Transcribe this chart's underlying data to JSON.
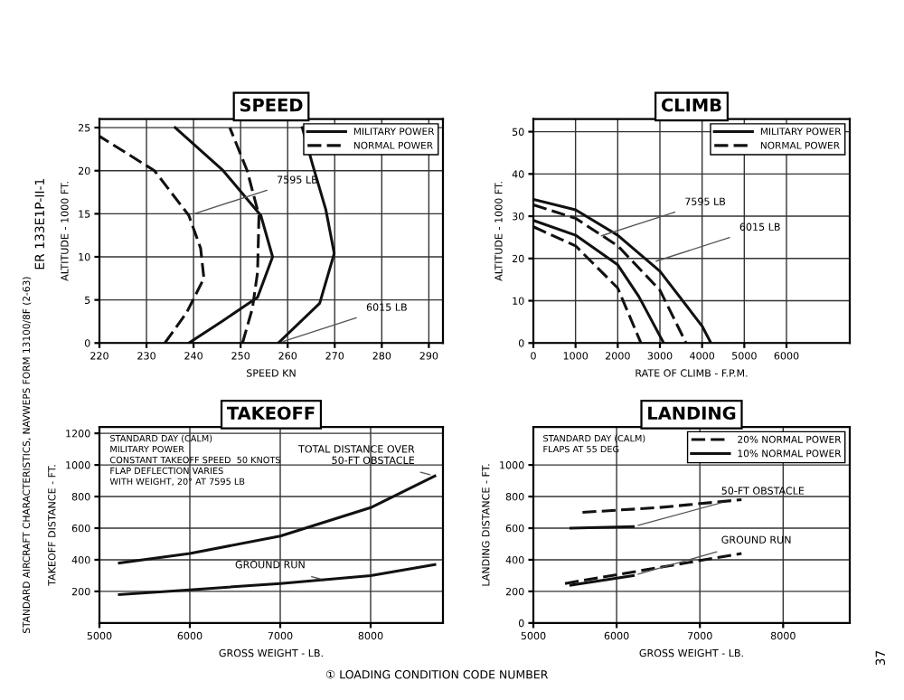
{
  "chart_data": [
    {
      "type": "line",
      "title": "SPEED",
      "xlabel": "SPEED KN",
      "ylabel": "ALTITUDE - 1000 FT.",
      "xlim": [
        220,
        293
      ],
      "xticks": [
        220,
        230,
        240,
        250,
        260,
        270,
        280,
        290
      ],
      "ylim": [
        0,
        26
      ],
      "yticks": [
        0,
        5,
        10,
        15,
        20,
        25
      ],
      "grid": true,
      "legend": "top right",
      "marker": "none",
      "series": [
        {
          "name": "MILITARY POWER",
          "color": "#111111",
          "line_style": "solid",
          "x": [
            239,
            246,
            253.6,
            256.8,
            254.3,
            246.3,
            236.1
          ],
          "values": [
            0,
            2.5,
            5.3,
            10,
            14.8,
            20,
            25
          ]
        },
        {
          "name": "NORMAL POWER",
          "color": "#111111",
          "line_style": "dashed",
          "x": [
            233.9,
            238.5,
            242.2,
            241.5,
            239,
            231.7,
            220
          ],
          "values": [
            0,
            3.5,
            7.5,
            11,
            14.8,
            20,
            24
          ]
        },
        {
          "color": "#111111",
          "line_style": "solid",
          "x": [
            258,
            266.8,
            269.9,
            268.1,
            265.3,
            263.1
          ],
          "values": [
            0,
            4.6,
            10.4,
            15.5,
            20.7,
            25
          ]
        },
        {
          "color": "#111111",
          "line_style": "dashed",
          "x": [
            250.4,
            252.5,
            253.6,
            253.9,
            251.4,
            247.7
          ],
          "values": [
            0,
            4,
            8.2,
            14.8,
            20,
            25
          ]
        }
      ],
      "annotations": [
        {
          "text": "7595 LB",
          "x": 239,
          "y": 14.8
        },
        {
          "text": "6015 LB",
          "x": 258,
          "y": 0
        }
      ]
    },
    {
      "type": "line",
      "title": "CLIMB",
      "xlabel": "RATE OF CLIMB - F.P.M.",
      "ylabel": "ALTITUDE - 1000 FT.",
      "xlim": [
        0,
        7500
      ],
      "xticks": [
        0,
        1000,
        2000,
        3000,
        4000,
        5000,
        6000
      ],
      "ylim": [
        0,
        53
      ],
      "yticks": [
        0,
        10,
        20,
        30,
        40,
        50
      ],
      "grid": true,
      "legend": "top right",
      "marker": "none",
      "series": [
        {
          "name": "MILITARY POWER",
          "color": "#111111",
          "line_style": "solid",
          "x": [
            0,
            1000,
            2000,
            3000,
            4000,
            4210
          ],
          "values": [
            34,
            31.5,
            25.5,
            17,
            4,
            0
          ]
        },
        {
          "name": "NORMAL POWER",
          "color": "#111111",
          "line_style": "dashed",
          "x": [
            0,
            1000,
            2000,
            3000,
            3620
          ],
          "values": [
            32.7,
            29.5,
            23,
            12.5,
            0
          ]
        },
        {
          "color": "#111111",
          "line_style": "solid",
          "x": [
            0,
            1000,
            2000,
            2500,
            3090
          ],
          "values": [
            29,
            25.5,
            18.5,
            11,
            0
          ]
        },
        {
          "color": "#111111",
          "line_style": "dashed",
          "x": [
            0,
            1000,
            2000,
            2550
          ],
          "values": [
            27.5,
            23,
            13,
            0
          ]
        }
      ],
      "annotations": [
        {
          "text": "7595 LB",
          "x": 1500,
          "y": 25
        },
        {
          "text": "6015 LB",
          "x": 2800,
          "y": 19
        }
      ]
    },
    {
      "type": "line",
      "title": "TAKEOFF",
      "xlabel": "GROSS WEIGHT - LB.",
      "ylabel": "TAKEOFF DISTANCE - FT.",
      "xlim": [
        5000,
        8800
      ],
      "xticks": [
        5000,
        6000,
        7000,
        8000
      ],
      "ylim": [
        0,
        1240
      ],
      "yticks": [
        200,
        400,
        600,
        800,
        1000,
        1200
      ],
      "grid": true,
      "marker": "none",
      "series": [
        {
          "color": "#111111",
          "line_style": "solid",
          "x": [
            5220,
            6000,
            7000,
            8000,
            8710
          ],
          "values": [
            380,
            440,
            550,
            730,
            930
          ]
        },
        {
          "color": "#111111",
          "line_style": "solid",
          "x": [
            5220,
            6000,
            7000,
            8000,
            8710
          ],
          "values": [
            180,
            210,
            250,
            300,
            370
          ]
        }
      ],
      "annotations": [
        "STANDARD DAY (CALM)",
        "MILITARY POWER",
        "CONSTANT TAKEOFF SPEED  50 KNOTS",
        "FLAP DEFLECTION VARIES",
        "WITH WEIGHT, 20° AT 7595 LB",
        {
          "text": "TOTAL DISTANCE OVER 50-FT OBSTACLE",
          "x": 8710,
          "y": 930
        },
        {
          "text": "GROUND RUN",
          "x": 7500,
          "y": 270
        }
      ]
    },
    {
      "type": "line",
      "title": "LANDING",
      "xlabel": "GROSS WEIGHT - LB.",
      "ylabel": "LANDING DISTANCE - FT.",
      "xlim": [
        5000,
        8800
      ],
      "xticks": [
        5000,
        6000,
        7000,
        8000
      ],
      "ylim": [
        0,
        1240
      ],
      "yticks": [
        0,
        200,
        400,
        600,
        800,
        1000
      ],
      "grid": true,
      "legend": "top right",
      "marker": "none",
      "series": [
        {
          "name": "20% NORMAL POWER",
          "color": "#111111",
          "line_style": "dashed",
          "x": [
            5590,
            6500,
            7500
          ],
          "values": [
            700,
            730,
            780
          ]
        },
        {
          "name": "10% NORMAL POWER",
          "color": "#111111",
          "line_style": "solid",
          "x": [
            5450,
            6200
          ],
          "values": [
            600,
            610
          ]
        },
        {
          "color": "#111111",
          "line_style": "dashed",
          "x": [
            5380,
            6500,
            7500
          ],
          "values": [
            250,
            350,
            440
          ]
        },
        {
          "color": "#111111",
          "line_style": "solid",
          "x": [
            5450,
            6200
          ],
          "values": [
            240,
            300
          ]
        }
      ],
      "annotations": [
        "STANDARD DAY (CALM)",
        "FLAPS AT 55 DEG",
        {
          "text": "50-FT OBSTACLE",
          "x": 6200,
          "y": 610
        },
        {
          "text": "GROUND RUN",
          "x": 6200,
          "y": 300
        }
      ]
    },
    {
      "type": "other",
      "annotations": [
        "① LOADING CONDITION CODE NUMBER",
        "STANDARD AIRCRAFT CHARACTERISTICS, NAVWEPS FORM 13100/8F (2-63)",
        "ER 133E1P-II-1",
        "37"
      ]
    }
  ]
}
